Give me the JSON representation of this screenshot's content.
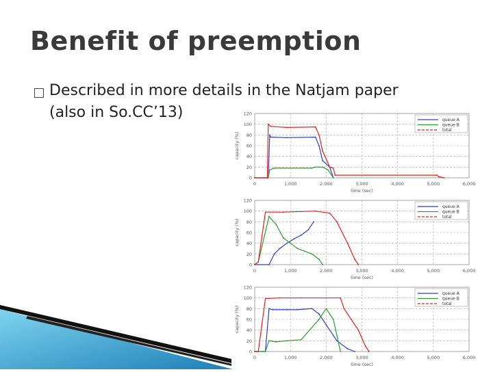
{
  "slide": {
    "title": "Benefit of preemption",
    "bullet_icon": "square-bullet-icon",
    "bullet_line1": "Described in more details in the Natjam paper",
    "bullet_line2": "(also in So.CC’13)"
  },
  "colors": {
    "queue_a": "#2a3fc0",
    "queue_b": "#2c9a2c",
    "total": "#e02020",
    "title": "#3a3a3a"
  },
  "chart_data": [
    {
      "type": "line",
      "ylabel": "capacity (%)",
      "xlabel": "time (sec)",
      "ylim": [
        0,
        120
      ],
      "xlim": [
        0,
        6000
      ],
      "yticks": [
        "0",
        "20",
        "40",
        "60",
        "80",
        "100",
        "120"
      ],
      "xticks": [
        "0",
        "1,000",
        "2,000",
        "3,000",
        "4,000",
        "5,000",
        "6,000"
      ],
      "grid": true,
      "legend_position": "top-right",
      "series": [
        {
          "name": "queue A",
          "color": "#2a3fc0",
          "x": [
            0,
            380,
            420,
            450,
            900,
            1700,
            1800,
            1900,
            2100,
            2200
          ],
          "y": [
            0,
            0,
            80,
            76,
            75,
            76,
            60,
            32,
            20,
            0
          ]
        },
        {
          "name": "queue B",
          "color": "#2c9a2c",
          "x": [
            0,
            380,
            420,
            550,
            1600,
            1700,
            1800,
            1900,
            2050,
            2200
          ],
          "y": [
            0,
            0,
            15,
            18,
            18,
            20,
            20,
            20,
            15,
            0
          ]
        },
        {
          "name": "total",
          "color": "#e02020",
          "x": [
            0,
            350,
            380,
            450,
            900,
            1700,
            1800,
            1900,
            2100,
            2200,
            2250,
            5100,
            5150,
            5300
          ],
          "y": [
            0,
            0,
            100,
            96,
            94,
            95,
            80,
            50,
            20,
            18,
            5,
            5,
            2,
            0
          ]
        }
      ]
    },
    {
      "type": "line",
      "ylabel": "capacity (%)",
      "xlabel": "time (sec)",
      "ylim": [
        0,
        120
      ],
      "xlim": [
        0,
        6000
      ],
      "yticks": [
        "0",
        "20",
        "40",
        "60",
        "80",
        "100",
        "120"
      ],
      "xticks": [
        "0",
        "1,000",
        "2,000",
        "3,000",
        "4,000",
        "5,000",
        "6,000"
      ],
      "grid": true,
      "legend_position": "top-right",
      "series": [
        {
          "name": "queue A",
          "color": "#2a3fc0",
          "x": [
            0,
            400,
            550,
            700,
            900,
            1100,
            1300,
            1500,
            1650
          ],
          "y": [
            0,
            0,
            20,
            30,
            40,
            48,
            55,
            65,
            80
          ]
        },
        {
          "name": "queue B",
          "color": "#2c9a2c",
          "x": [
            0,
            100,
            400,
            600,
            800,
            1000,
            1200,
            1400,
            1600,
            1800,
            1900
          ],
          "y": [
            0,
            5,
            90,
            75,
            50,
            40,
            30,
            25,
            20,
            10,
            0
          ]
        },
        {
          "name": "total",
          "color": "#e02020",
          "x": [
            0,
            100,
            300,
            800,
            1700,
            2100,
            2300,
            2600,
            2800,
            2900
          ],
          "y": [
            0,
            5,
            98,
            98,
            100,
            96,
            80,
            40,
            10,
            0
          ]
        }
      ]
    },
    {
      "type": "line",
      "ylabel": "capacity (%)",
      "xlabel": "time (sec)",
      "ylim": [
        0,
        120
      ],
      "xlim": [
        0,
        6000
      ],
      "yticks": [
        "0",
        "20",
        "40",
        "60",
        "80",
        "100",
        "120"
      ],
      "xticks": [
        "0",
        "1,000",
        "2,000",
        "3,000",
        "4,000",
        "5,000",
        "6,000"
      ],
      "grid": true,
      "legend_position": "top-right",
      "series": [
        {
          "name": "queue A",
          "color": "#2a3fc0",
          "x": [
            0,
            300,
            400,
            500,
            900,
            1200,
            1600,
            1800,
            2000,
            2300,
            2600,
            2800
          ],
          "y": [
            0,
            0,
            80,
            78,
            78,
            78,
            80,
            70,
            50,
            20,
            5,
            0
          ]
        },
        {
          "name": "queue B",
          "color": "#2c9a2c",
          "x": [
            0,
            300,
            400,
            600,
            900,
            1300,
            1800,
            2000,
            2200,
            2400
          ],
          "y": [
            0,
            0,
            20,
            18,
            20,
            22,
            60,
            80,
            60,
            0
          ]
        },
        {
          "name": "total",
          "color": "#e02020",
          "x": [
            0,
            100,
            300,
            700,
            1300,
            2400,
            2500,
            2700,
            2900,
            3100,
            3200
          ],
          "y": [
            0,
            0,
            99,
            100,
            100,
            100,
            80,
            60,
            40,
            10,
            0
          ]
        }
      ]
    }
  ]
}
